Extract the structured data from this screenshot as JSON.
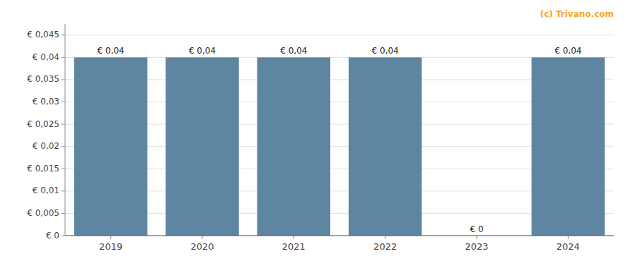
{
  "chart_data": {
    "type": "bar",
    "categories": [
      "2019",
      "2020",
      "2021",
      "2022",
      "2023",
      "2024"
    ],
    "values": [
      0.04,
      0.04,
      0.04,
      0.04,
      0.0,
      0.04
    ],
    "value_labels": [
      "€ 0,04",
      "€ 0,04",
      "€ 0,04",
      "€ 0,04",
      "€ 0",
      "€ 0,04"
    ],
    "data_labels": true,
    "color": "#5f86a0",
    "ylim": [
      0,
      0.0475
    ],
    "yticks": [
      {
        "value": 0.0,
        "label": "€ 0"
      },
      {
        "value": 0.005,
        "label": "€ 0,005"
      },
      {
        "value": 0.01,
        "label": "€ 0,01"
      },
      {
        "value": 0.015,
        "label": "€ 0,015"
      },
      {
        "value": 0.02,
        "label": "€ 0,02"
      },
      {
        "value": 0.025,
        "label": "€ 0,025"
      },
      {
        "value": 0.03,
        "label": "€ 0,03"
      },
      {
        "value": 0.035,
        "label": "€ 0,035"
      },
      {
        "value": 0.04,
        "label": "€ 0,04"
      },
      {
        "value": 0.045,
        "label": "€ 0,045"
      }
    ],
    "grid": true,
    "annotations": [
      "(c) Trivano.com"
    ]
  }
}
